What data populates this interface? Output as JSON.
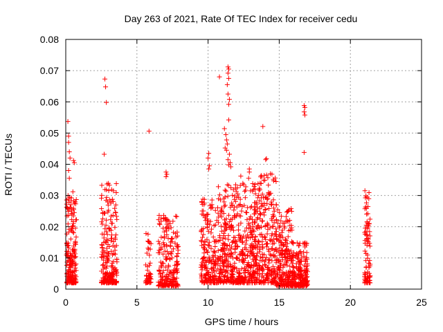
{
  "chart_data": {
    "type": "scatter",
    "title": "Day 263 of 2021, Rate Of TEC Index for receiver cedu",
    "xlabel": "GPS time / hours",
    "ylabel": "ROTI / TECUs",
    "xlim": [
      0,
      25
    ],
    "ylim": [
      0,
      0.08
    ],
    "xticks": [
      0,
      5,
      10,
      15,
      20,
      25
    ],
    "yticks": [
      0,
      0.01,
      0.02,
      0.03,
      0.04,
      0.05,
      0.06,
      0.07,
      0.08
    ],
    "xtick_labels": [
      "0",
      "5",
      "10",
      "15",
      "20",
      "25"
    ],
    "ytick_labels": [
      "0",
      "0.01",
      "0.02",
      "0.03",
      "0.04",
      "0.05",
      "0.06",
      "0.07",
      "0.08"
    ],
    "grid": true,
    "marker": "+",
    "marker_color": "#ff0000",
    "outliers": [
      [
        0.15,
        0.0537
      ],
      [
        0.2,
        0.049
      ],
      [
        0.2,
        0.047
      ],
      [
        0.25,
        0.044
      ],
      [
        0.3,
        0.042
      ],
      [
        0.2,
        0.038
      ],
      [
        0.25,
        0.0355
      ],
      [
        0.55,
        0.0412
      ],
      [
        0.6,
        0.0405
      ],
      [
        0.5,
        0.0312
      ],
      [
        2.75,
        0.0673
      ],
      [
        2.8,
        0.0648
      ],
      [
        2.85,
        0.0598
      ],
      [
        2.7,
        0.0432
      ],
      [
        5.85,
        0.0506
      ],
      [
        7.05,
        0.0375
      ],
      [
        7.1,
        0.0368
      ],
      [
        7.05,
        0.036
      ],
      [
        10.05,
        0.0435
      ],
      [
        10.0,
        0.042
      ],
      [
        10.1,
        0.0395
      ],
      [
        10.05,
        0.0385
      ],
      [
        10.8,
        0.068
      ],
      [
        11.4,
        0.0712
      ],
      [
        11.45,
        0.0705
      ],
      [
        11.4,
        0.0692
      ],
      [
        11.45,
        0.0675
      ],
      [
        11.35,
        0.0655
      ],
      [
        11.4,
        0.0625
      ],
      [
        11.5,
        0.0608
      ],
      [
        11.45,
        0.0592
      ],
      [
        11.15,
        0.0514
      ],
      [
        11.25,
        0.0495
      ],
      [
        11.3,
        0.0478
      ],
      [
        11.35,
        0.0465
      ],
      [
        11.2,
        0.0452
      ],
      [
        11.3,
        0.0445
      ],
      [
        11.45,
        0.0542
      ],
      [
        11.5,
        0.0432
      ],
      [
        11.4,
        0.0415
      ],
      [
        11.55,
        0.0405
      ],
      [
        11.45,
        0.0398
      ],
      [
        11.6,
        0.0392
      ],
      [
        12.9,
        0.0385
      ],
      [
        12.9,
        0.0375
      ],
      [
        12.85,
        0.0355
      ],
      [
        12.3,
        0.0362
      ],
      [
        13.85,
        0.0521
      ],
      [
        14.05,
        0.0415
      ],
      [
        14.1,
        0.0418
      ],
      [
        16.75,
        0.0588
      ],
      [
        16.8,
        0.0582
      ],
      [
        16.75,
        0.0568
      ],
      [
        16.8,
        0.0558
      ],
      [
        16.75,
        0.0438
      ]
    ],
    "clusters": [
      {
        "x": [
          0.05,
          0.75
        ],
        "ymin": 0.002,
        "ymax": 0.03,
        "n": 190
      },
      {
        "x": [
          2.5,
          3.6
        ],
        "ymin": 0.002,
        "ymax": 0.034,
        "n": 230
      },
      {
        "x": [
          5.6,
          6.0
        ],
        "ymin": 0.002,
        "ymax": 0.018,
        "n": 50
      },
      {
        "x": [
          6.5,
          7.9
        ],
        "ymin": 0.001,
        "ymax": 0.024,
        "n": 220
      },
      {
        "x": [
          9.5,
          10.7
        ],
        "ymin": 0.002,
        "ymax": 0.029,
        "n": 190
      },
      {
        "x": [
          10.7,
          13.6
        ],
        "ymin": 0.002,
        "ymax": 0.034,
        "n": 560
      },
      {
        "x": [
          13.6,
          14.8
        ],
        "ymin": 0.002,
        "ymax": 0.037,
        "n": 220
      },
      {
        "x": [
          14.8,
          15.9
        ],
        "ymin": 0.001,
        "ymax": 0.026,
        "n": 210
      },
      {
        "x": [
          15.9,
          17.0
        ],
        "ymin": 0.001,
        "ymax": 0.015,
        "n": 210
      },
      {
        "x": [
          21.0,
          21.4
        ],
        "ymin": 0.002,
        "ymax": 0.033,
        "n": 90
      }
    ]
  }
}
